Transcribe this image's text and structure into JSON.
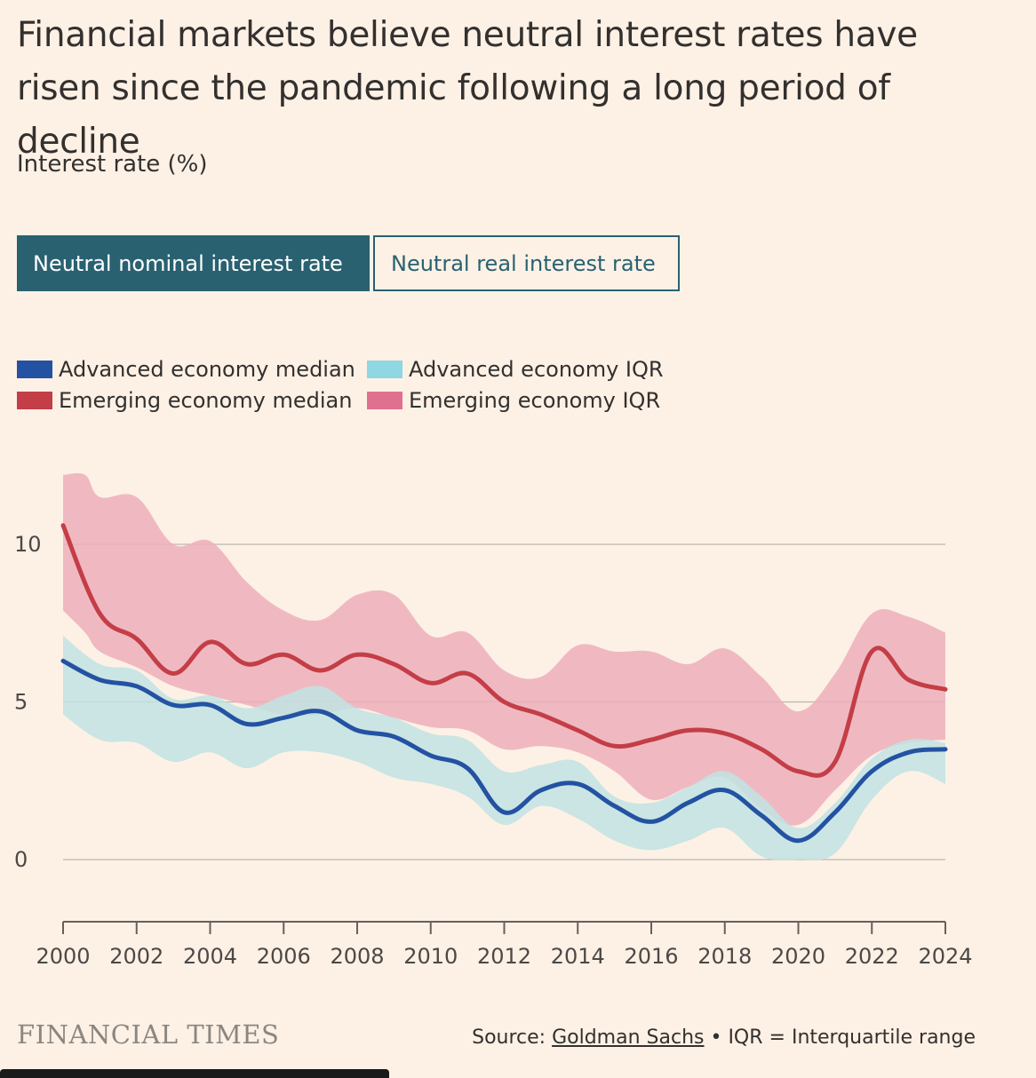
{
  "header": {
    "title": "Financial markets believe neutral interest rates have risen since the pandemic following a long period of decline",
    "subtitle": "Interest rate (%)"
  },
  "toggles": [
    {
      "label": "Neutral nominal interest rate",
      "active": true
    },
    {
      "label": "Neutral real interest rate",
      "active": false
    }
  ],
  "legend": [
    {
      "label": "Advanced economy median",
      "color": "#2452A3"
    },
    {
      "label": "Advanced economy IQR",
      "color": "#8FD7E2"
    },
    {
      "label": "Emerging economy median",
      "color": "#C43E47"
    },
    {
      "label": "Emerging economy IQR",
      "color": "#E07090"
    }
  ],
  "footer": {
    "brand": "FINANCIAL TIMES",
    "source_prefix": "Source: ",
    "source_name": "Goldman Sachs",
    "source_suffix": " • IQR = Interquartile range"
  },
  "chart_data": {
    "type": "area",
    "xlim": [
      2000,
      2024
    ],
    "ylim": [
      -2,
      12.3
    ],
    "xticks": [
      "2000",
      "2002",
      "2004",
      "2006",
      "2008",
      "2010",
      "2012",
      "2014",
      "2016",
      "2018",
      "2020",
      "2022",
      "2024"
    ],
    "yticks": [
      0,
      5,
      10
    ],
    "grid": true,
    "series": [
      {
        "name": "Emerging economy IQR",
        "type": "band",
        "color": "#EDAFBB",
        "x": [
          2000,
          2000.6,
          2001,
          2002,
          2003,
          2004,
          2005,
          2006,
          2007,
          2008,
          2009,
          2010,
          2011,
          2012,
          2013,
          2014,
          2015,
          2016,
          2017,
          2018,
          2019,
          2020,
          2021,
          2022,
          2023,
          2024
        ],
        "upper": [
          12.2,
          12.2,
          11.5,
          11.5,
          10.0,
          10.1,
          8.8,
          7.9,
          7.6,
          8.4,
          8.4,
          7.1,
          7.2,
          6.0,
          5.8,
          6.8,
          6.6,
          6.6,
          6.2,
          6.7,
          5.8,
          4.7,
          5.9,
          7.8,
          7.7,
          7.2
        ],
        "lower": [
          7.9,
          7.2,
          6.6,
          6.1,
          5.5,
          5.2,
          4.9,
          4.6,
          4.6,
          4.8,
          4.5,
          4.2,
          4.1,
          3.5,
          3.6,
          3.4,
          2.8,
          1.9,
          2.3,
          2.6,
          1.6,
          1.1,
          2.2,
          3.3,
          3.7,
          3.8
        ]
      },
      {
        "name": "Advanced economy IQR",
        "type": "band",
        "color": "#C1E3E2",
        "x": [
          2000,
          2001,
          2002,
          2003,
          2004,
          2005,
          2006,
          2007,
          2008,
          2009,
          2010,
          2011,
          2012,
          2013,
          2014,
          2015,
          2016,
          2017,
          2018,
          2019,
          2020,
          2021,
          2022,
          2023,
          2024
        ],
        "upper": [
          7.1,
          6.2,
          6.0,
          5.1,
          5.2,
          4.8,
          5.2,
          5.5,
          4.8,
          4.5,
          4.0,
          3.8,
          2.8,
          3.0,
          3.1,
          2.0,
          1.8,
          2.3,
          2.8,
          2.0,
          1.0,
          1.8,
          3.2,
          3.8,
          3.7
        ],
        "lower": [
          4.6,
          3.8,
          3.7,
          3.1,
          3.4,
          2.9,
          3.4,
          3.4,
          3.1,
          2.6,
          2.4,
          2.0,
          1.1,
          1.7,
          1.3,
          0.6,
          0.3,
          0.6,
          1.0,
          0.1,
          0.0,
          0.2,
          1.9,
          2.8,
          2.4
        ]
      },
      {
        "name": "Emerging economy median",
        "type": "line",
        "color": "#C43E47",
        "x": [
          2000,
          2001,
          2002,
          2003,
          2004,
          2005,
          2006,
          2007,
          2008,
          2009,
          2010,
          2011,
          2012,
          2013,
          2014,
          2015,
          2016,
          2017,
          2018,
          2019,
          2020,
          2021,
          2022,
          2023,
          2024
        ],
        "values": [
          10.6,
          7.8,
          7.0,
          5.9,
          6.9,
          6.2,
          6.5,
          6.0,
          6.5,
          6.2,
          5.6,
          5.9,
          5.0,
          4.6,
          4.1,
          3.6,
          3.8,
          4.1,
          4.0,
          3.5,
          2.8,
          3.1,
          6.6,
          5.7,
          5.4
        ]
      },
      {
        "name": "Advanced economy median",
        "type": "line",
        "color": "#2452A3",
        "x": [
          2000,
          2001,
          2002,
          2003,
          2004,
          2005,
          2006,
          2007,
          2008,
          2009,
          2010,
          2011,
          2012,
          2013,
          2014,
          2015,
          2016,
          2017,
          2018,
          2019,
          2020,
          2021,
          2022,
          2023,
          2024
        ],
        "values": [
          6.3,
          5.7,
          5.5,
          4.9,
          4.9,
          4.3,
          4.5,
          4.7,
          4.1,
          3.9,
          3.3,
          2.9,
          1.5,
          2.2,
          2.4,
          1.7,
          1.2,
          1.8,
          2.2,
          1.4,
          0.6,
          1.5,
          2.8,
          3.4,
          3.5
        ]
      }
    ]
  }
}
